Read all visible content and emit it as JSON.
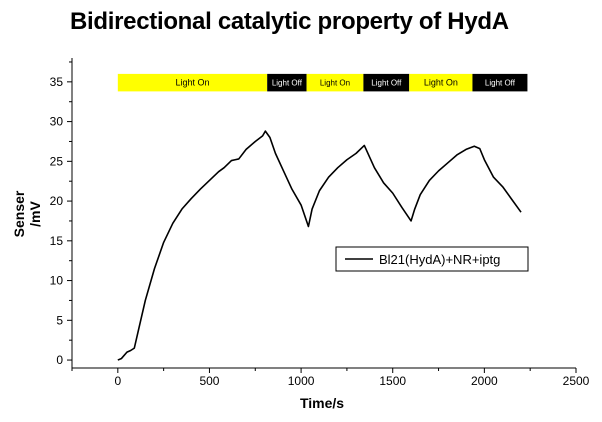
{
  "chart_data": {
    "type": "line",
    "title": "Bidirectional catalytic property of HydA",
    "xlabel": "Time/s",
    "ylabel_line1": "Senser",
    "ylabel_line2": "/mV",
    "xlim": [
      -250,
      2500
    ],
    "ylim": [
      -1,
      38
    ],
    "x_ticks": [
      0,
      500,
      1000,
      1500,
      2000,
      2500
    ],
    "y_ticks": [
      0,
      5,
      10,
      15,
      20,
      25,
      30,
      35
    ],
    "grid": false,
    "legend_position": "center-right",
    "series": [
      {
        "name": "Bl21(HydA)+NR+iptg",
        "color": "#000000",
        "x": [
          0,
          20,
          50,
          70,
          90,
          110,
          150,
          200,
          250,
          300,
          350,
          400,
          450,
          500,
          550,
          580,
          620,
          640,
          660,
          700,
          750,
          790,
          805,
          830,
          860,
          900,
          950,
          1000,
          1040,
          1060,
          1100,
          1150,
          1200,
          1250,
          1300,
          1345,
          1400,
          1450,
          1500,
          1550,
          1600,
          1620,
          1650,
          1700,
          1750,
          1800,
          1850,
          1900,
          1945,
          1975,
          2000,
          2050,
          2100,
          2150,
          2200
        ],
        "y": [
          0,
          0.2,
          1.0,
          1.2,
          1.5,
          3.5,
          7.5,
          11.5,
          14.8,
          17.2,
          19.0,
          20.3,
          21.5,
          22.6,
          23.7,
          24.2,
          25.1,
          25.2,
          25.3,
          26.5,
          27.5,
          28.2,
          28.8,
          28.0,
          26.0,
          24.0,
          21.5,
          19.5,
          16.8,
          19.0,
          21.3,
          23.0,
          24.2,
          25.2,
          26.0,
          27.0,
          24.2,
          22.3,
          21.0,
          19.2,
          17.5,
          19.0,
          20.8,
          22.6,
          23.8,
          24.8,
          25.8,
          26.5,
          26.9,
          26.6,
          25.2,
          23.0,
          21.8,
          20.2,
          18.6
        ]
      }
    ],
    "annotations": [
      {
        "label": "Light On",
        "x_start": 0,
        "x_end": 815,
        "color": "#ffff00",
        "text_color": "#000000"
      },
      {
        "label": "Light Off",
        "x_start": 815,
        "x_end": 1030,
        "color": "#000000",
        "text_color": "#ffffff"
      },
      {
        "label": "Light On",
        "x_start": 1030,
        "x_end": 1340,
        "color": "#ffff00",
        "text_color": "#000000"
      },
      {
        "label": "Light Off",
        "x_start": 1340,
        "x_end": 1590,
        "color": "#000000",
        "text_color": "#ffffff"
      },
      {
        "label": "Light On",
        "x_start": 1590,
        "x_end": 1935,
        "color": "#ffff00",
        "text_color": "#000000"
      },
      {
        "label": "Light Off",
        "x_start": 1935,
        "x_end": 2235,
        "color": "#000000",
        "text_color": "#ffffff"
      }
    ],
    "annotation_band_y": [
      33.8,
      36.0
    ]
  }
}
